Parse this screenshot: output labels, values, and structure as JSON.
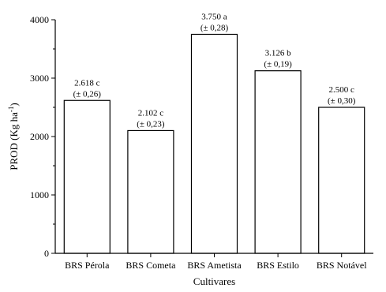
{
  "chart_data": {
    "type": "bar",
    "xlabel": "Cultivares",
    "ylabel": "PROD (Kg ha",
    "ylabel_superscript": "-1",
    "ylabel_close": ")",
    "ylim": [
      0,
      4000
    ],
    "yticks": [
      0,
      1000,
      2000,
      3000,
      4000
    ],
    "ytick_labels": [
      "0",
      "1000",
      "2000",
      "3000",
      "4000"
    ],
    "grid": false,
    "categories": [
      "BRS Pérola",
      "BRS Cometa",
      "BRS Ametista",
      "BRS Estilo",
      "BRS Notável"
    ],
    "values": [
      2618,
      2102,
      3750,
      3126,
      2500
    ],
    "value_labels": [
      "2.618 c",
      "2.102 c",
      "3.750 a",
      "3.126 b",
      "2.500 c"
    ],
    "error_labels": [
      "(± 0,26)",
      "(± 0,23)",
      "(± 0,28)",
      "(± 0,19)",
      "(± 0,30)"
    ]
  }
}
